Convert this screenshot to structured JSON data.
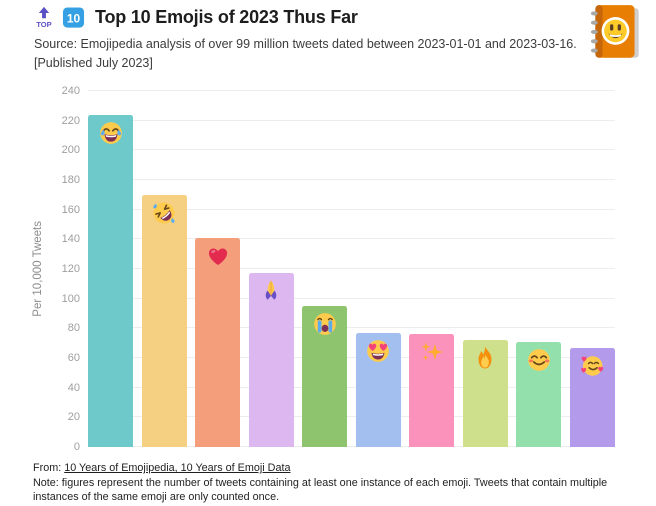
{
  "header": {
    "top_icon_text": "TOP",
    "keycap_label": "10",
    "title": "Top 10 Emojis of 2023 Thus Far",
    "source": "Source: Emojipedia analysis of over 99 million tweets dated between 2023-01-01 and 2023-03-16.",
    "published": "[Published July 2023]"
  },
  "chart_data": {
    "type": "bar",
    "title": "Top 10 Emojis of 2023 Thus Far",
    "xlabel": "",
    "ylabel": "Per 10,000 Tweets",
    "ylim": [
      0,
      240
    ],
    "yticks": [
      0,
      20,
      40,
      60,
      80,
      100,
      120,
      140,
      160,
      180,
      200,
      220,
      240
    ],
    "grid": true,
    "legend": "none",
    "categories": [
      "face-with-tears-of-joy",
      "rolling-on-the-floor-laughing",
      "red-heart",
      "folded-hands",
      "loudly-crying-face",
      "smiling-face-with-heart-eyes",
      "sparkles",
      "fire",
      "smiling-face-with-smiling-eyes",
      "smiling-face-with-hearts"
    ],
    "emoji": [
      "😂",
      "🤣",
      "❤️",
      "🙏",
      "😭",
      "😍",
      "✨",
      "🔥",
      "😊",
      "🥰"
    ],
    "values": [
      224,
      170,
      141,
      117,
      95,
      77,
      76,
      72,
      71,
      67
    ],
    "bar_colors": [
      "#6ecaca",
      "#f5d083",
      "#f49e7c",
      "#ddb8f0",
      "#8ec46d",
      "#a3bff0",
      "#fb92bc",
      "#cfe08c",
      "#93e0ad",
      "#b49aea"
    ]
  },
  "footer": {
    "from_prefix": "From:",
    "from_link": "10 Years of Emojipedia, 10 Years of Emoji Data",
    "note": "Note: figures represent the number of tweets containing at least one instance of each emoji. Tweets that contain multiple instances of the same emoji are only counted once."
  },
  "colors": {
    "top_arrow_icon": "#5b51c5",
    "keycap_bg": "#35a0e4",
    "grid_line": "#ededed",
    "tick_label": "#9e9e9e",
    "axis_title": "#8d8d8d",
    "title_text": "#1d1d1d",
    "body_text": "#3c3c3c",
    "logo_orange": "#e87e04"
  }
}
